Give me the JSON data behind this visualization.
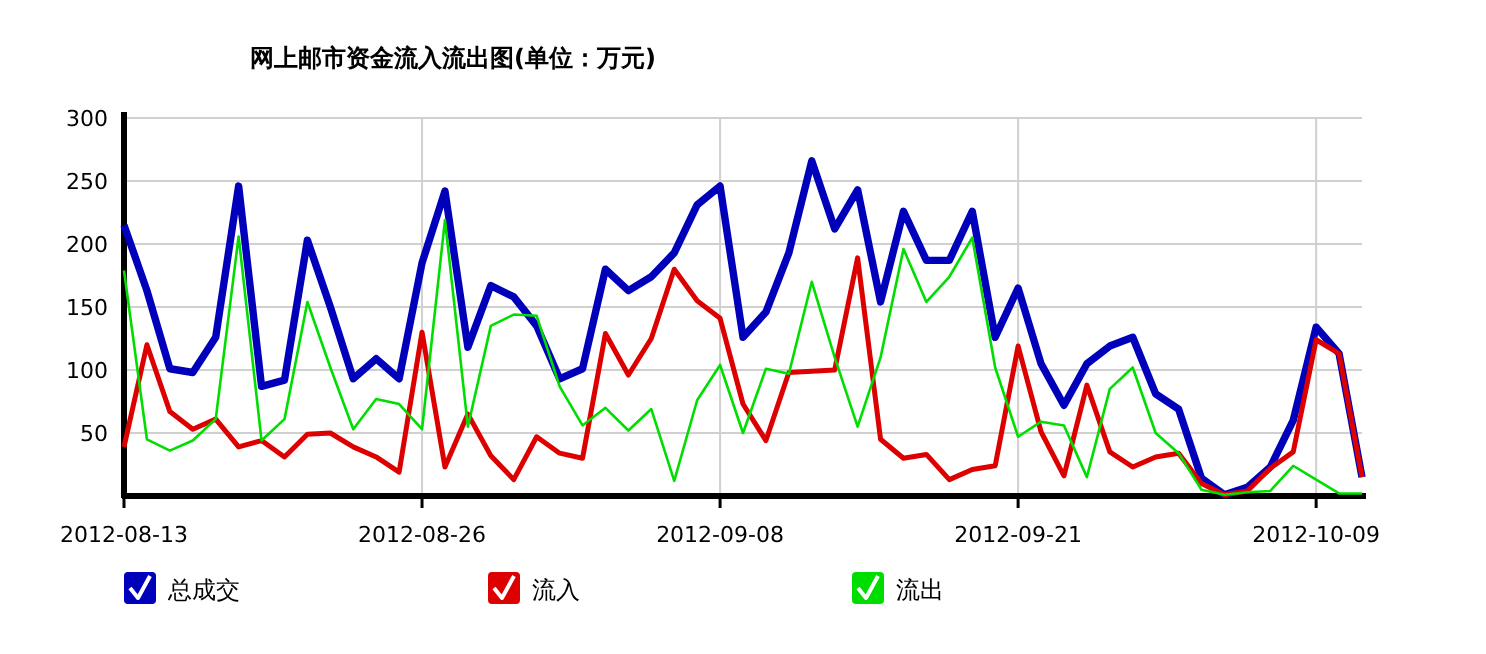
{
  "chart_data": {
    "type": "line",
    "title": "网上邮市资金流入流出图(单位：万元)",
    "categories": [
      "2012-08-13",
      null,
      null,
      null,
      null,
      null,
      null,
      null,
      null,
      null,
      null,
      null,
      null,
      "2012-08-26",
      null,
      null,
      null,
      null,
      null,
      null,
      null,
      null,
      null,
      null,
      null,
      null,
      "2012-09-08",
      null,
      null,
      null,
      null,
      null,
      null,
      null,
      null,
      null,
      null,
      null,
      null,
      "2012-09-21",
      null,
      null,
      null,
      null,
      null,
      null,
      null,
      null,
      null,
      null,
      null,
      null,
      "2012-10-09",
      null,
      null
    ],
    "series": [
      {
        "name": "总成交",
        "color": "#0000bb",
        "values": [
          215,
          163,
          101,
          98,
          126,
          246,
          87,
          92,
          203,
          150,
          93,
          109,
          93,
          185,
          242,
          118,
          167,
          158,
          135,
          93,
          101,
          180,
          163,
          174,
          193,
          231,
          246,
          126,
          146,
          193,
          266,
          212,
          243,
          154,
          226,
          187,
          187,
          226,
          126,
          165,
          105,
          72,
          105,
          119,
          126,
          81,
          69,
          14,
          1,
          7,
          23,
          60,
          134,
          113,
          15
        ]
      },
      {
        "name": "流入",
        "color": "#dd0000",
        "values": [
          39,
          120,
          67,
          53,
          61,
          39,
          44,
          31,
          49,
          50,
          39,
          31,
          19,
          130,
          23,
          65,
          32,
          13,
          47,
          34,
          30,
          129,
          96,
          125,
          180,
          155,
          141,
          73,
          44,
          98,
          99,
          100,
          189,
          45,
          30,
          33,
          13,
          21,
          24,
          119,
          51,
          16,
          88,
          35,
          23,
          31,
          34,
          10,
          1,
          4,
          22,
          35,
          124,
          113,
          15
        ]
      },
      {
        "name": "流出",
        "color": "#00dd00",
        "values": [
          179,
          45,
          36,
          44,
          61,
          206,
          44,
          61,
          154,
          102,
          53,
          77,
          73,
          53,
          219,
          55,
          135,
          144,
          143,
          87,
          56,
          70,
          52,
          69,
          12,
          76,
          104,
          50,
          101,
          97,
          170,
          110,
          55,
          110,
          196,
          154,
          174,
          205,
          102,
          47,
          59,
          56,
          15,
          85,
          102,
          50,
          34,
          5,
          1,
          3,
          4,
          24,
          13,
          2,
          2
        ]
      }
    ],
    "ylim": [
      0,
      300
    ],
    "yticks": [
      50,
      100,
      150,
      200,
      250,
      300
    ],
    "grid": true,
    "legend": "bottom"
  }
}
